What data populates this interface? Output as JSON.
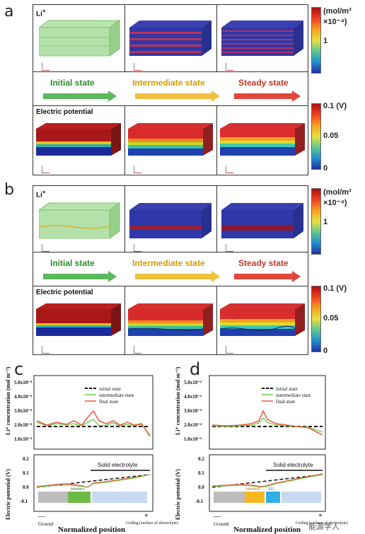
{
  "panel_a": {
    "letter": "a",
    "li_label": "Li",
    "li_sup": "+",
    "potential_label": "Electric potential",
    "states": [
      "Initial state",
      "Intermediate state",
      "Steady state"
    ],
    "conc_colorbar": {
      "unit": "(mol/m³",
      "scale": "×10⁻⁴)",
      "mid": "1"
    },
    "pot_colorbar": {
      "max": "0.1 (V)",
      "mid": "0.05",
      "min": "0"
    }
  },
  "panel_b": {
    "letter": "b",
    "li_label": "Li",
    "li_sup": "+",
    "potential_label": "Electric potential",
    "states": [
      "Initial state",
      "Intermediate state",
      "Steady state"
    ],
    "conc_colorbar": {
      "unit": "(mol/m³",
      "scale": "×10⁻⁴)",
      "mid": "1"
    },
    "pot_colorbar": {
      "max": "0.1 (V)",
      "mid": "0.05",
      "min": "0"
    }
  },
  "colors": {
    "arrow_initial": "#5cb85c",
    "arrow_intermediate": "#f0c040",
    "arrow_steady": "#e0473a"
  },
  "panel_c": {
    "letter": "c",
    "ylabel_top": "Li⁺ concentration (mol m⁻³)",
    "ylabel_bottom": "Electric potential (V)",
    "xlabel": "Normalized position",
    "ground": "Ground",
    "ceiling": "Ceiling (surface of electrolyte)",
    "minus": "—",
    "plus": "+",
    "solid_electrolyte": "Solid electrolyte",
    "interface": "Interface",
    "legend": [
      "initial state",
      "intermediate state",
      "final state"
    ],
    "yticks_top": [
      "5.0x10⁻⁴",
      "4.0x10⁻⁴",
      "3.0x10⁻⁴",
      "2.0x10⁻⁴",
      "1.0x10⁻⁴"
    ],
    "yticks_bottom": [
      "0.2",
      "0.1",
      "0.0",
      "-0.1"
    ]
  },
  "panel_d": {
    "letter": "d",
    "ylabel_top": "Li⁺ concentration (mol m⁻³)",
    "ylabel_bottom": "Electric potential (V)",
    "xlabel": "Normalized position",
    "ground": "Ground",
    "ceiling": "Ceiling (surface of electrolyte)",
    "minus": "—",
    "plus": "+",
    "solid_electrolyte": "Solid electrolyte",
    "interface": "Interface",
    "sei": "SEI",
    "legend": [
      "initial state",
      "intermediate state",
      "final state"
    ],
    "yticks_top": [
      "5.0x10⁻⁴",
      "4.0x10⁻⁴",
      "3.0x10⁻⁴",
      "2.0x10⁻⁴",
      "1.0x10⁻⁴"
    ],
    "yticks_bottom": [
      "0.2",
      "0.1",
      "0.0",
      "-0.1"
    ]
  },
  "watermark": "能源学人"
}
